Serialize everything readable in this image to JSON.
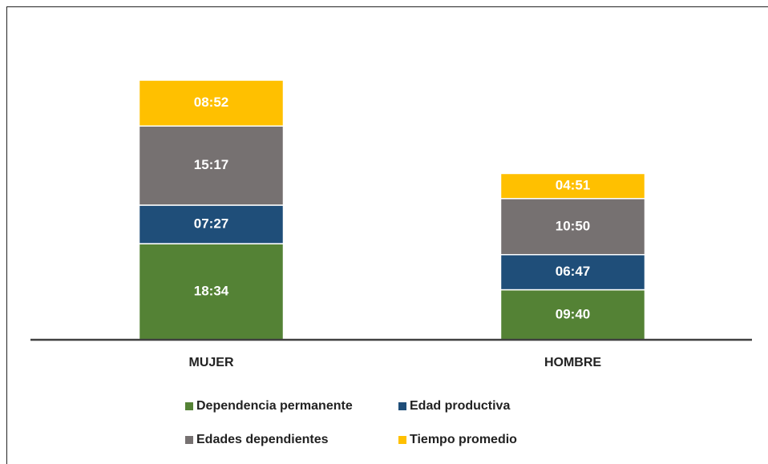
{
  "chart_data": {
    "type": "bar",
    "stacked": true,
    "categories": [
      "MUJER",
      "HOMBRE"
    ],
    "series": [
      {
        "name": "Dependencia permanente",
        "color": "#548235",
        "values": [
          1114,
          580
        ],
        "value_labels": [
          "18:34",
          "09:40"
        ]
      },
      {
        "name": "Edad productiva",
        "color": "#1f4e79",
        "values": [
          447,
          407
        ],
        "value_labels": [
          "07:27",
          "06:47"
        ]
      },
      {
        "name": "Edades dependientes",
        "color": "#767171",
        "values": [
          917,
          650
        ],
        "value_labels": [
          "15:17",
          "10:50"
        ]
      },
      {
        "name": "Tiempo promedio",
        "color": "#ffc000",
        "values": [
          532,
          291
        ],
        "value_labels": [
          "08:52",
          "04:51"
        ]
      }
    ],
    "legend": "bottom"
  }
}
